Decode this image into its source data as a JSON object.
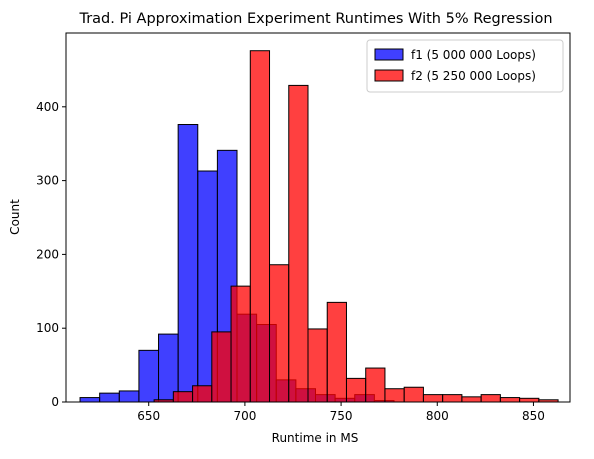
{
  "chart_data": {
    "type": "bar",
    "title": "Trad. Pi Approximation Experiment Runtimes With 5% Regression",
    "xlabel": "Runtime in MS",
    "ylabel": "Count",
    "xlim": [
      607,
      869
    ],
    "ylim": [
      0,
      500
    ],
    "x_ticks": [
      650,
      700,
      750,
      800,
      850
    ],
    "y_ticks": [
      0,
      100,
      200,
      300,
      400
    ],
    "legend_position": "top-right",
    "series": [
      {
        "name": "f1 (5 000 000 Loops)",
        "color": "#0000ff",
        "bins": [
          [
            614.3,
            624.5,
            6
          ],
          [
            624.5,
            634.7,
            12
          ],
          [
            634.7,
            644.9,
            15
          ],
          [
            644.9,
            655.1,
            70
          ],
          [
            655.1,
            665.3,
            92
          ],
          [
            665.3,
            675.5,
            376
          ],
          [
            675.5,
            685.7,
            313
          ],
          [
            685.7,
            695.9,
            341
          ],
          [
            695.9,
            706.1,
            119
          ],
          [
            706.1,
            716.3,
            105
          ],
          [
            716.3,
            726.5,
            30
          ],
          [
            726.5,
            736.7,
            18
          ],
          [
            736.7,
            746.9,
            10
          ],
          [
            746.9,
            757.1,
            5
          ],
          [
            757.1,
            767.3,
            10
          ],
          [
            767.3,
            777.5,
            2
          ]
        ]
      },
      {
        "name": "f2 (5 250 000 Loops)",
        "color": "#ff0000",
        "bins": [
          [
            652.8,
            662.8,
            3
          ],
          [
            662.8,
            672.8,
            14
          ],
          [
            672.8,
            682.8,
            22
          ],
          [
            682.8,
            692.8,
            95
          ],
          [
            692.8,
            702.8,
            157
          ],
          [
            702.8,
            712.8,
            476
          ],
          [
            712.8,
            722.8,
            186
          ],
          [
            722.8,
            732.8,
            429
          ],
          [
            732.8,
            742.8,
            99
          ],
          [
            742.8,
            752.8,
            135
          ],
          [
            752.8,
            762.8,
            32
          ],
          [
            762.8,
            772.8,
            46
          ],
          [
            772.8,
            782.8,
            18
          ],
          [
            782.8,
            792.8,
            20
          ],
          [
            792.8,
            802.8,
            10
          ],
          [
            802.8,
            812.8,
            10
          ],
          [
            812.8,
            822.8,
            7
          ],
          [
            822.8,
            832.8,
            10
          ],
          [
            832.8,
            842.8,
            6
          ],
          [
            842.8,
            852.8,
            5
          ],
          [
            852.8,
            862.8,
            3
          ]
        ]
      }
    ]
  }
}
